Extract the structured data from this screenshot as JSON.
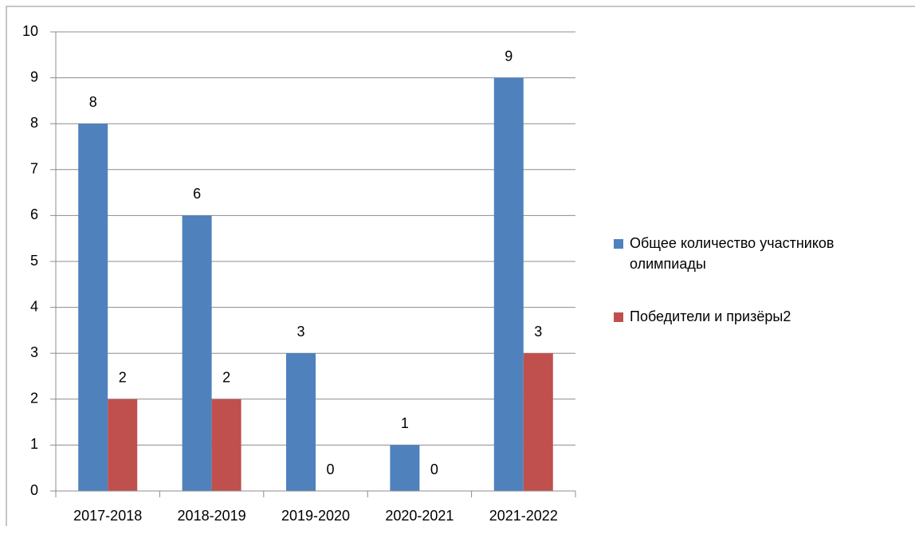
{
  "chart_data": {
    "type": "bar",
    "categories": [
      "2017-2018",
      "2018-2019",
      "2019-2020",
      "2020-2021",
      "2021-2022"
    ],
    "series": [
      {
        "name": "Общее количество участников олимпиады",
        "color": "#4f81bd",
        "values": [
          8,
          6,
          3,
          1,
          9
        ]
      },
      {
        "name": "Победители и призёры2",
        "color": "#c0504d",
        "values": [
          2,
          2,
          0,
          0,
          3
        ]
      }
    ],
    "ylim": [
      0,
      10
    ],
    "yticks": [
      0,
      1,
      2,
      3,
      4,
      5,
      6,
      7,
      8,
      9,
      10
    ],
    "grid": true,
    "legend": "right"
  }
}
